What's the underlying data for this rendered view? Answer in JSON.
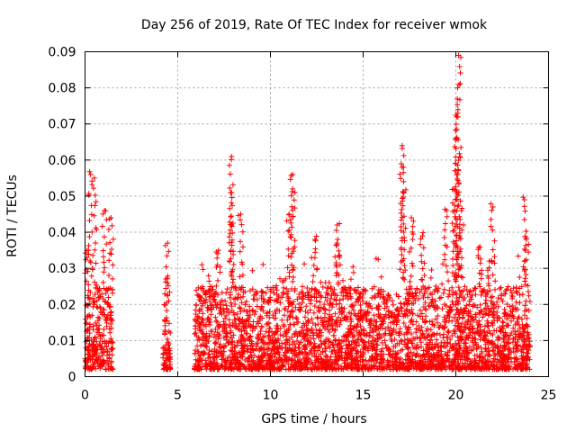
{
  "chart_data": {
    "type": "scatter",
    "title": "Day 256 of 2019, Rate Of TEC Index for receiver wmok",
    "xlabel": "GPS time / hours",
    "ylabel": "ROTI / TECUs",
    "xlim": [
      0,
      25
    ],
    "ylim": [
      0,
      0.09
    ],
    "xticks": [
      0,
      5,
      10,
      15,
      20,
      25
    ],
    "xtick_labels": [
      "0",
      "5",
      "10",
      "15",
      "20",
      "25"
    ],
    "yticks": [
      0,
      0.01,
      0.02,
      0.03,
      0.04,
      0.05,
      0.06,
      0.07,
      0.08,
      0.09
    ],
    "ytick_labels": [
      "0",
      "0.01",
      "0.02",
      "0.03",
      "0.04",
      "0.05",
      "0.06",
      "0.07",
      "0.08",
      "0.09"
    ],
    "grid": true,
    "marker": "+",
    "color": "#ff0000",
    "series": [
      {
        "name": "ROTI",
        "clusters": [
          {
            "x_range": [
              0.0,
              1.5
            ],
            "y_typical": [
              0.002,
              0.025
            ],
            "peaks": [
              [
                0.1,
                0.035
              ],
              [
                0.3,
                0.056
              ],
              [
                0.5,
                0.055
              ],
              [
                1.05,
                0.046
              ],
              [
                1.4,
                0.044
              ]
            ]
          },
          {
            "x_range": [
              4.2,
              4.6
            ],
            "y_typical": [
              0.002,
              0.018
            ],
            "peaks": [
              [
                4.45,
                0.037
              ],
              [
                4.45,
                0.026
              ]
            ]
          },
          {
            "x_range": [
              5.9,
              24.0
            ],
            "y_typical": [
              0.002,
              0.025
            ],
            "peaks": [
              [
                7.2,
                0.035
              ],
              [
                7.9,
                0.061
              ],
              [
                7.9,
                0.051
              ],
              [
                7.9,
                0.042
              ],
              [
                8.4,
                0.045
              ],
              [
                11.0,
                0.045
              ],
              [
                11.2,
                0.056
              ],
              [
                11.2,
                0.052
              ],
              [
                12.4,
                0.038
              ],
              [
                13.6,
                0.042
              ],
              [
                13.6,
                0.037
              ],
              [
                17.1,
                0.064
              ],
              [
                17.1,
                0.058
              ],
              [
                17.2,
                0.051
              ],
              [
                17.6,
                0.044
              ],
              [
                18.2,
                0.039
              ],
              [
                19.5,
                0.046
              ],
              [
                19.9,
                0.052
              ],
              [
                20.0,
                0.059
              ],
              [
                20.05,
                0.066
              ],
              [
                20.1,
                0.073
              ],
              [
                20.1,
                0.08
              ],
              [
                20.15,
                0.089
              ],
              [
                20.3,
                0.046
              ],
              [
                21.3,
                0.036
              ],
              [
                21.8,
                0.032
              ],
              [
                22.0,
                0.047
              ],
              [
                23.7,
                0.049
              ],
              [
                23.8,
                0.038
              ]
            ]
          }
        ]
      }
    ]
  }
}
